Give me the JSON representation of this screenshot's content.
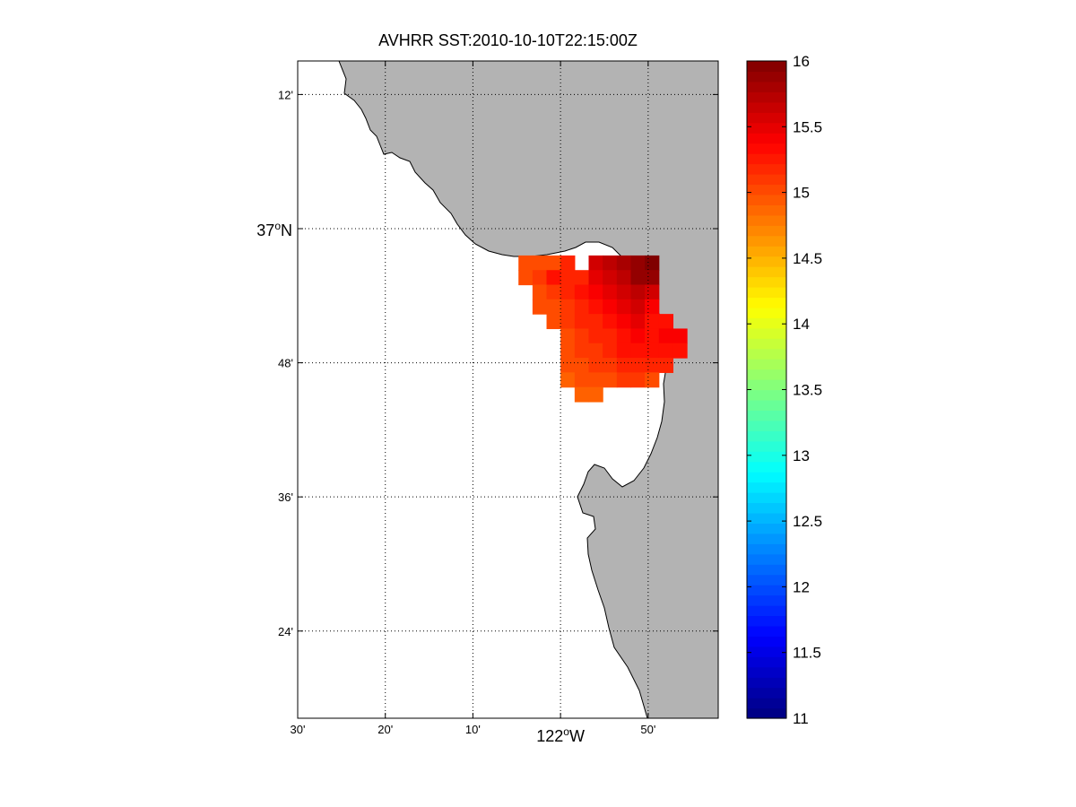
{
  "title": "AVHRR SST:2010-10-10T22:15:00Z",
  "map": {
    "x_ticks": [
      {
        "lon": -122.5,
        "label": "30'"
      },
      {
        "lon": -122.3333,
        "label": "20'"
      },
      {
        "lon": -122.1667,
        "label": "10'"
      },
      {
        "lon": -122.0,
        "label": "122",
        "major": true
      },
      {
        "lon": -121.8333,
        "label": "50'"
      }
    ],
    "y_ticks": [
      {
        "lat": 37.2,
        "label": "12'"
      },
      {
        "lat": 37.0,
        "label": "37",
        "major": true
      },
      {
        "lat": 36.8,
        "label": "48'"
      },
      {
        "lat": 36.6,
        "label": "36'"
      },
      {
        "lat": 36.4,
        "label": "24'"
      }
    ],
    "major_lon_suffix": "W",
    "major_lat_suffix": "N",
    "degree_mark": "o",
    "lon_range": [
      -122.5,
      -121.7
    ],
    "lat_range": [
      36.27,
      37.25
    ],
    "grid": "dotted",
    "land_color": "#b3b3b3",
    "ocean_color": "#ffffff"
  },
  "colorbar": {
    "colormap": "jet",
    "range": [
      11,
      16
    ],
    "ticks": [
      "11",
      "11.5",
      "12",
      "12.5",
      "13",
      "13.5",
      "14",
      "14.5",
      "15",
      "15.5",
      "16"
    ],
    "placement": "right"
  },
  "sst_grid": {
    "lon0": -122.08,
    "lat0": 36.96,
    "dlon": 0.0267,
    "dlat": 0.0218,
    "cols": 12,
    "rows": [
      [
        15.0,
        15.0,
        15.0,
        15.2,
        null,
        15.6,
        15.7,
        15.8,
        15.9,
        16.0,
        null,
        null
      ],
      [
        15.0,
        15.1,
        15.3,
        15.2,
        15.2,
        15.5,
        15.6,
        15.7,
        15.9,
        15.9,
        null,
        null
      ],
      [
        null,
        15.0,
        15.1,
        15.2,
        15.3,
        15.4,
        15.5,
        15.6,
        15.7,
        15.6,
        null,
        null
      ],
      [
        null,
        15.0,
        15.0,
        15.1,
        15.2,
        15.3,
        15.4,
        15.5,
        15.6,
        15.4,
        null,
        null
      ],
      [
        null,
        null,
        15.0,
        15.1,
        15.2,
        15.2,
        15.3,
        15.4,
        15.5,
        15.3,
        15.3,
        null
      ],
      [
        null,
        null,
        null,
        15.0,
        15.1,
        15.2,
        15.2,
        15.3,
        15.4,
        15.3,
        15.4,
        15.4
      ],
      [
        null,
        null,
        null,
        15.0,
        15.1,
        15.1,
        15.2,
        15.3,
        15.3,
        15.3,
        15.3,
        15.3
      ],
      [
        null,
        null,
        null,
        15.0,
        15.0,
        15.1,
        15.1,
        15.2,
        15.2,
        15.2,
        15.2,
        null
      ],
      [
        null,
        null,
        null,
        14.9,
        15.0,
        15.0,
        15.0,
        15.1,
        15.1,
        15.0,
        null,
        null
      ],
      [
        null,
        null,
        null,
        null,
        14.9,
        14.9,
        null,
        null,
        null,
        null,
        null,
        null
      ]
    ]
  }
}
